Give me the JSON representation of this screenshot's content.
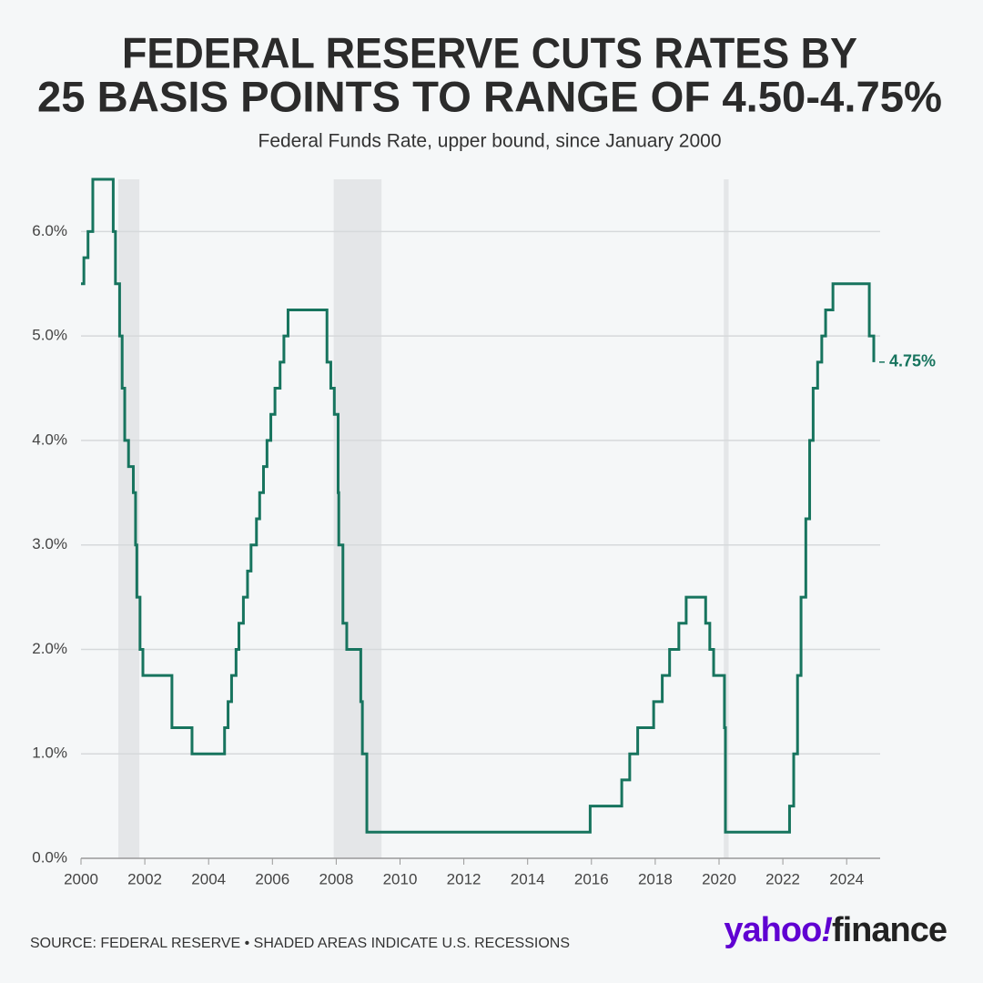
{
  "chart_data": {
    "type": "step",
    "title": [
      "FEDERAL RESERVE CUTS RATES BY",
      "25 BASIS POINTS TO RANGE OF 4.50-4.75%"
    ],
    "subtitle": "Federal Funds Rate, upper bound, since January 2000",
    "source": "SOURCE: FEDERAL RESERVE • SHADED AREAS INDICATE U.S. RECESSIONS",
    "logo": [
      "yahoo",
      "!",
      "finance"
    ],
    "color": "#17745e",
    "recession_color": "#e4e6e8",
    "recessions": [
      [
        2001.17,
        2001.83
      ],
      [
        2007.92,
        2009.42
      ],
      [
        2020.15,
        2020.3
      ]
    ],
    "x": [
      2000.0,
      2000.09,
      2000.22,
      2000.37,
      2001.01,
      2001.08,
      2001.21,
      2001.29,
      2001.37,
      2001.49,
      2001.64,
      2001.71,
      2001.75,
      2001.85,
      2001.94,
      2002.85,
      2003.48,
      2004.5,
      2004.61,
      2004.72,
      2004.86,
      2004.95,
      2005.09,
      2005.22,
      2005.33,
      2005.5,
      2005.6,
      2005.72,
      2005.83,
      2005.95,
      2006.08,
      2006.24,
      2006.36,
      2006.49,
      2007.71,
      2007.83,
      2007.94,
      2008.06,
      2008.08,
      2008.21,
      2008.33,
      2008.77,
      2008.82,
      2008.96,
      2015.96,
      2016.95,
      2017.2,
      2017.45,
      2017.95,
      2018.22,
      2018.45,
      2018.74,
      2018.97,
      2019.58,
      2019.71,
      2019.83,
      2020.17,
      2020.2,
      2022.21,
      2022.34,
      2022.46,
      2022.57,
      2022.72,
      2022.84,
      2022.95,
      2023.09,
      2023.22,
      2023.34,
      2023.57,
      2024.71,
      2024.85
    ],
    "values": [
      5.5,
      5.75,
      6.0,
      6.5,
      6.0,
      5.5,
      5.0,
      4.5,
      4.0,
      3.75,
      3.5,
      3.0,
      2.5,
      2.0,
      1.75,
      1.25,
      1.0,
      1.25,
      1.5,
      1.75,
      2.0,
      2.25,
      2.5,
      2.75,
      3.0,
      3.25,
      3.5,
      3.75,
      4.0,
      4.25,
      4.5,
      4.75,
      5.0,
      5.25,
      4.75,
      4.5,
      4.25,
      3.5,
      3.0,
      2.25,
      2.0,
      1.5,
      1.0,
      0.25,
      0.5,
      0.75,
      1.0,
      1.25,
      1.5,
      1.75,
      2.0,
      2.25,
      2.5,
      2.25,
      2.0,
      1.75,
      1.25,
      0.25,
      0.5,
      1.0,
      1.75,
      2.5,
      3.25,
      4.0,
      4.5,
      4.75,
      5.0,
      5.25,
      5.5,
      5.0,
      4.75
    ],
    "end_label": "4.75%",
    "xlim": [
      2000,
      2025.05
    ],
    "xticks": [
      2000,
      2002,
      2004,
      2006,
      2008,
      2010,
      2012,
      2014,
      2016,
      2018,
      2020,
      2022,
      2024
    ],
    "ylim": [
      0,
      6.5
    ],
    "yticks": [
      {
        "value": 0,
        "label": "0.0%"
      },
      {
        "value": 1,
        "label": "1.0%"
      },
      {
        "value": 2,
        "label": "2.0%"
      },
      {
        "value": 3,
        "label": "3.0%"
      },
      {
        "value": 4,
        "label": "4.0%"
      },
      {
        "value": 5,
        "label": "5.0%"
      },
      {
        "value": 6,
        "label": "6.0%"
      }
    ],
    "grid": true
  }
}
